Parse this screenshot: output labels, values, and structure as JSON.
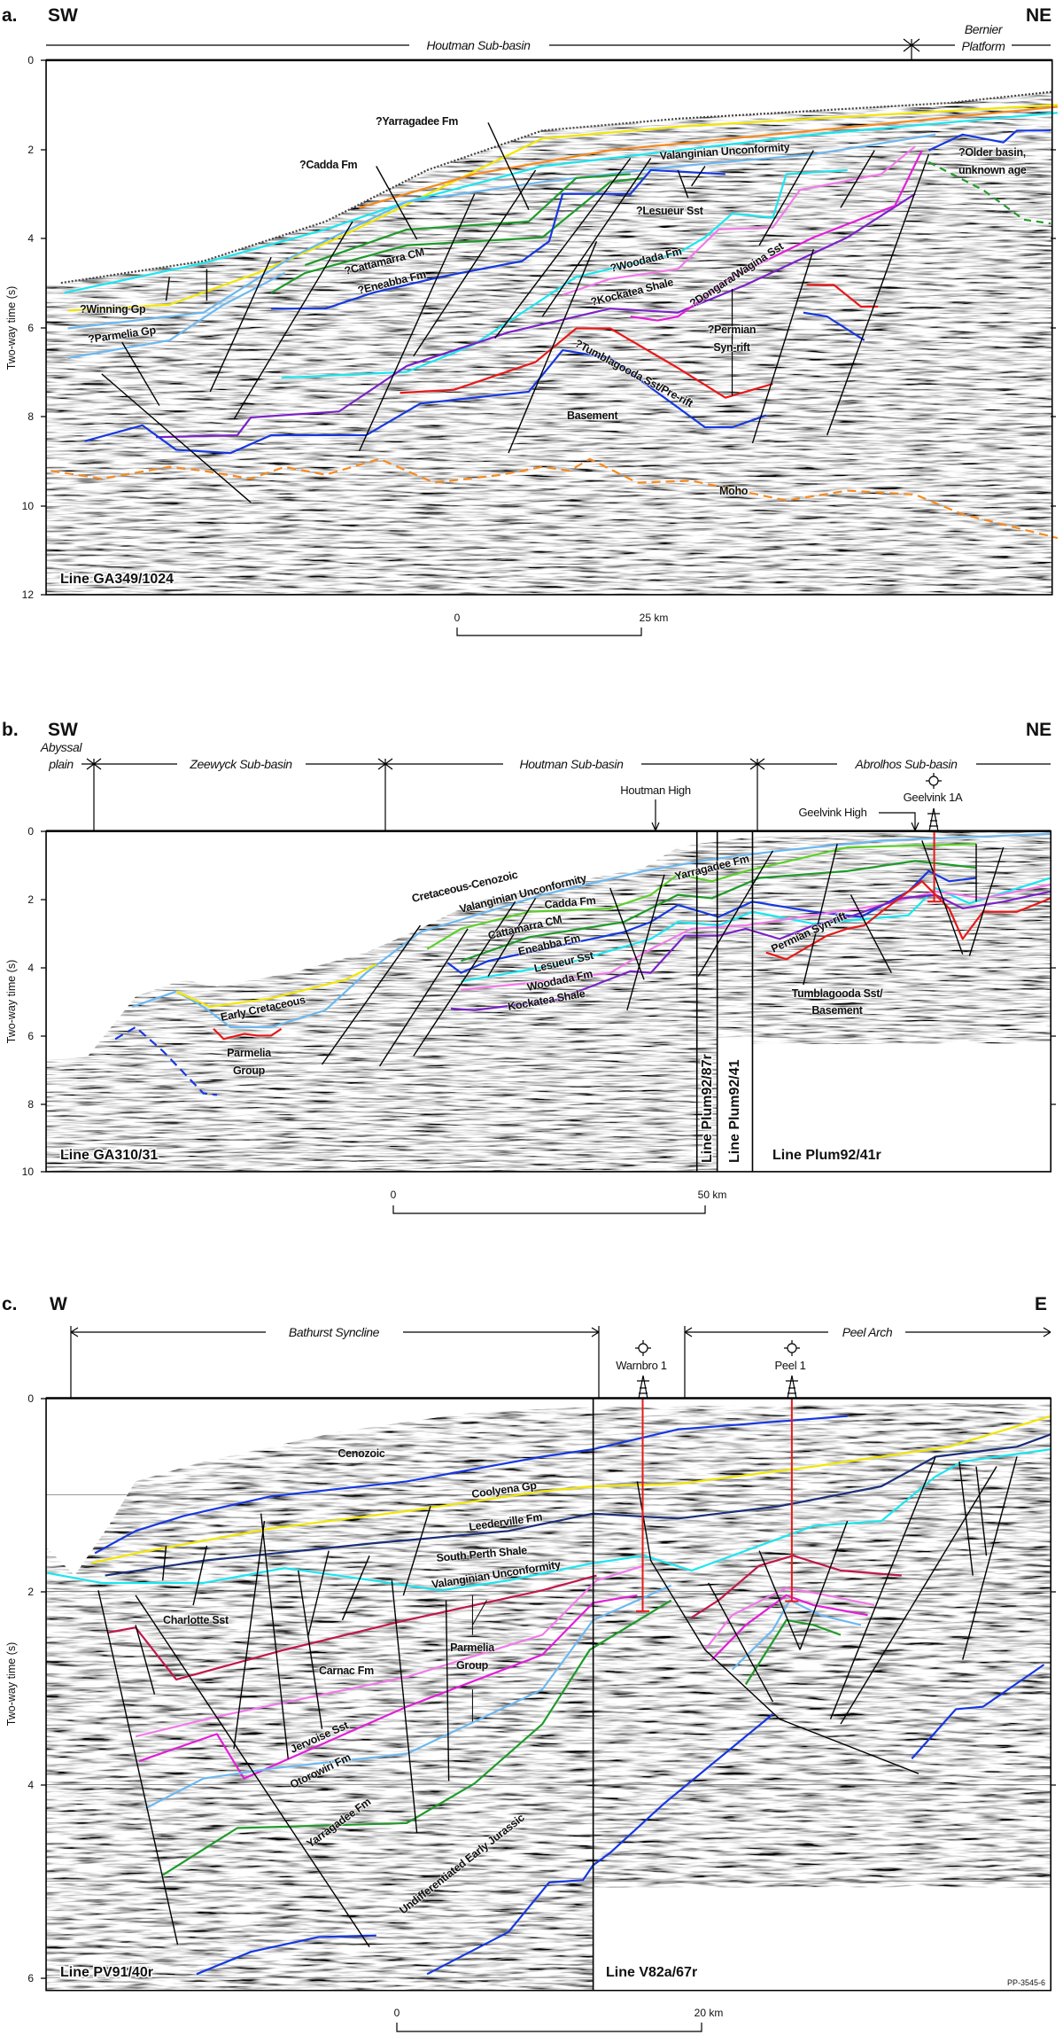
{
  "colors": {
    "yellow": "#f2e600",
    "orange": "#f58a1f",
    "cyan": "#19e6f0",
    "lightblue": "#6cb8f0",
    "green": "#1f9a2a",
    "lightgreen": "#5ccf2a",
    "blue": "#1638e0",
    "navy": "#1a2f78",
    "violet": "#7a22c8",
    "pink": "#f07ae8",
    "magenta": "#e21ed8",
    "red": "#e81818",
    "crimson": "#c0184a",
    "moho": "#f58a1f"
  },
  "panel_a": {
    "letter": "a.",
    "left_dir": "SW",
    "right_dir": "NE",
    "regions": {
      "houtman": "Houtman Sub-basin",
      "bernier": [
        "Bernier",
        "Platform"
      ]
    },
    "axis_title": "Two-way time (s)",
    "ticks": [
      "0",
      "2",
      "4",
      "6",
      "8",
      "10",
      "12"
    ],
    "labels": {
      "yarragadee": "?Yarragadee Fm",
      "cadda": "?Cadda Fm",
      "valanginian": "Valanginian Unconformity",
      "lesueur": "?Lesueur Sst",
      "cattamarra": "?Cattamarra CM",
      "eneabba": "?Eneabba Fm",
      "woodada": "?Woodada Fm",
      "kockatea": "?Kockatea Shale",
      "dongara": "?Dongara/Wagina Sst",
      "permian": [
        "?Permian",
        "Syn-rift"
      ],
      "tumblagooda": "?Tumblagooda Sst/Pre-rift",
      "basement": "Basement",
      "winning": "?Winning Gp",
      "parmelia": "?Parmelia Gp",
      "older": [
        "?Older basin,",
        "unknown age"
      ],
      "moho": "Moho"
    },
    "line": "Line GA349/1024",
    "scale": {
      "start": "0",
      "end": "25 km"
    }
  },
  "panel_b": {
    "letter": "b.",
    "left_dir": "SW",
    "right_dir": "NE",
    "regions": {
      "abyssal": [
        "Abyssal",
        "plain"
      ],
      "zeewyck": "Zeewyck Sub-basin",
      "houtman": "Houtman Sub-basin",
      "abrolhos": "Abrolhos Sub-basin"
    },
    "features": {
      "houtman_high": "Houtman High",
      "geelvink_high": "Geelvink High",
      "well": "Geelvink 1A"
    },
    "axis_title": "Two-way time (s)",
    "ticks": [
      "0",
      "2",
      "4",
      "6",
      "8",
      "10"
    ],
    "labels": {
      "cret_cen": "Cretaceous-Cenozoic",
      "valanginian": "Valanginian Unconformity",
      "yarragadee": "Yarragadee Fm",
      "cadda": "Cadda Fm",
      "cattamarra": "Cattamarra CM",
      "eneabba": "Eneabba Fm",
      "lesueur": "Lesueur Sst",
      "woodada": "Woodada Fm",
      "kockatea": "Kockatea  Shale",
      "early_cret": "Early Cretaceous",
      "parmelia": [
        "Parmelia",
        "Group"
      ],
      "permian": "Permian Syn-rift",
      "tumblagooda": [
        "Tumblagooda Sst/",
        "Basement"
      ]
    },
    "lines": {
      "main": "Line GA310/31",
      "plum87r": "Line Plum92/87r",
      "plum41": "Line Plum92/41",
      "plum41r": "Line Plum92/41r"
    },
    "scale": {
      "start": "0",
      "end": "50 km"
    }
  },
  "panel_c": {
    "letter": "c.",
    "left_dir": "W",
    "right_dir": "E",
    "regions": {
      "bathurst": "Bathurst Syncline",
      "peel": "Peel Arch"
    },
    "wells": [
      "Warnbro 1",
      "Peel 1"
    ],
    "axis_title": "Two-way time (s)",
    "ticks": [
      "0",
      "2",
      "4",
      "6"
    ],
    "labels": {
      "cenozoic": "Cenozoic",
      "coolyena": "Coolyena Gp",
      "leederville": "Leederville Fm",
      "south_perth": "South Perth Shale",
      "valanginian": "Valanginian  Unconformity",
      "charlotte": "Charlotte Sst",
      "carnac": "Carnac Fm",
      "parmelia": [
        "Parmelia",
        "Group"
      ],
      "jervoise": "Jervoise Sst",
      "otorowiri": "Otorowiri Fm",
      "yarragadee": "Yarragadee Fm",
      "undiff": "Undifferentiated Early Jurassic"
    },
    "lines": {
      "left": "Line PV91/40r",
      "right": "Line V82a/67r"
    },
    "figure_code": "PP-3545-6",
    "scale": {
      "start": "0",
      "end": "20 km"
    }
  }
}
